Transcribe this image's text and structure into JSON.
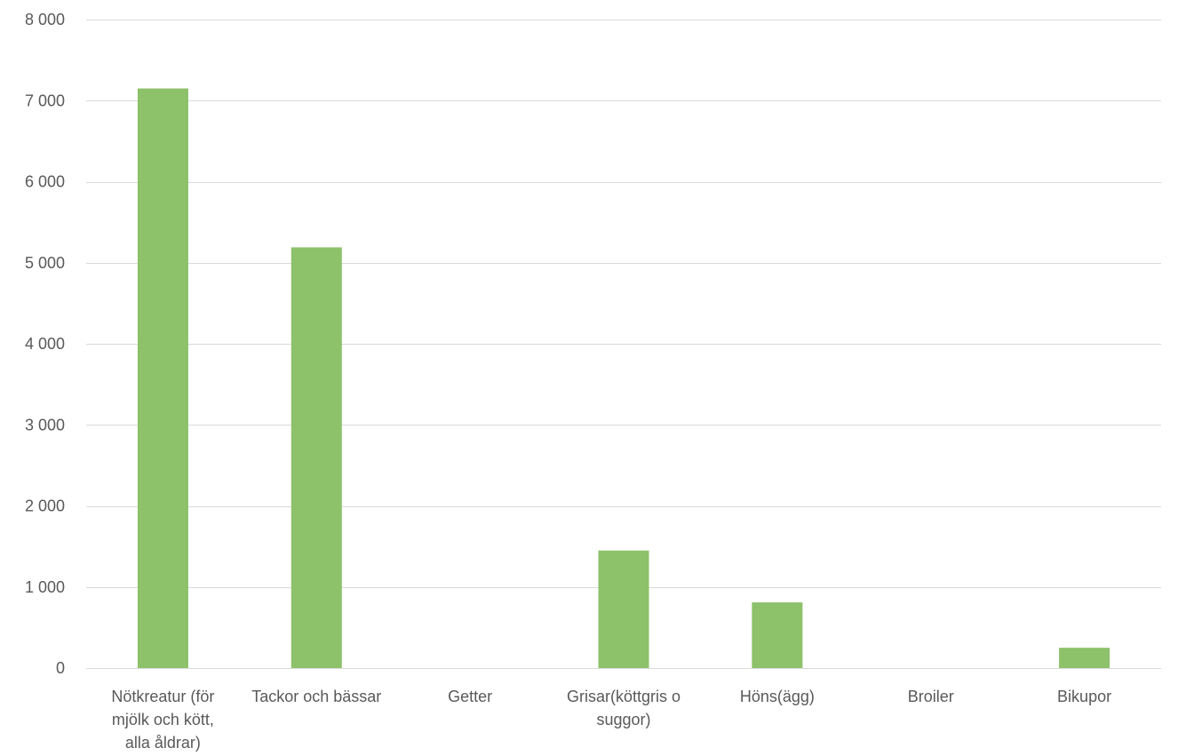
{
  "chart_data": {
    "type": "bar",
    "title": "",
    "xlabel": "",
    "ylabel": "",
    "categories": [
      [
        "Nötkreatur (för",
        "mjölk och kött,",
        "alla åldrar)"
      ],
      [
        "Tackor och bässar"
      ],
      [
        "Getter"
      ],
      [
        "Grisar(köttgris o",
        "suggor)"
      ],
      [
        "Höns(ägg)"
      ],
      [
        "Broiler"
      ],
      [
        "Bikupor"
      ]
    ],
    "values": [
      7150,
      5190,
      0,
      1450,
      810,
      0,
      250
    ],
    "ylim": [
      0,
      8000
    ],
    "yticks": [
      0,
      1000,
      2000,
      3000,
      4000,
      5000,
      6000,
      7000,
      8000
    ],
    "ytick_labels": [
      "0",
      "1 000",
      "2 000",
      "3 000",
      "4 000",
      "5 000",
      "6 000",
      "7 000",
      "8 000"
    ],
    "grid": true,
    "legend": "none",
    "bar_color": "#8dc16a",
    "grid_color": "#d9d9d9",
    "text_color": "#595959"
  }
}
